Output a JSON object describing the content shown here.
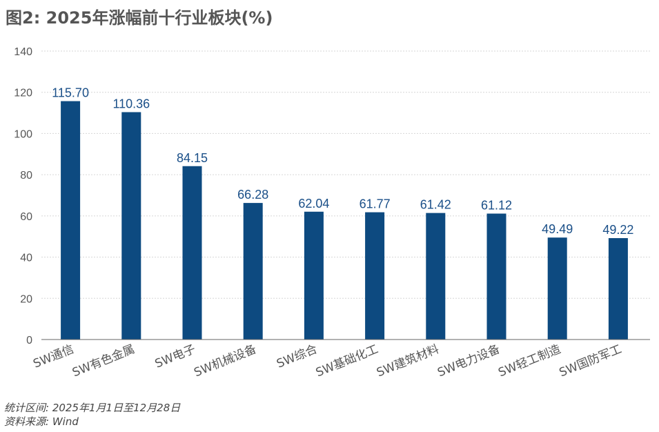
{
  "title": "图2: 2025年涨幅前十行业板块(%)",
  "notes": {
    "period": "统计区间: 2025年1月1日至12月28日",
    "source": "资料来源: Wind"
  },
  "colors": {
    "bar": "#0d4a80",
    "label": "#1a4f88",
    "grid": "#d6d6d6",
    "axis": "#666666"
  },
  "chart_data": {
    "type": "bar",
    "title": "图2: 2025年涨幅前十行业板块(%)",
    "xlabel": "",
    "ylabel": "",
    "categories": [
      "SW通信",
      "SW有色金属",
      "SW电子",
      "SW机械设备",
      "SW综合",
      "SW基础化工",
      "SW建筑材料",
      "SW电力设备",
      "SW轻工制造",
      "SW国防军工"
    ],
    "values": [
      115.7,
      110.36,
      84.15,
      66.28,
      62.04,
      61.77,
      61.42,
      61.12,
      49.49,
      49.22
    ],
    "value_labels": [
      "115.70",
      "110.36",
      "84.15",
      "66.28",
      "62.04",
      "61.77",
      "61.42",
      "61.12",
      "49.49",
      "49.22"
    ],
    "ylim": [
      0,
      140
    ],
    "yticks": [
      "0",
      "20",
      "40",
      "60",
      "80",
      "100",
      "120",
      "140"
    ],
    "grid": true,
    "legend": "none"
  }
}
